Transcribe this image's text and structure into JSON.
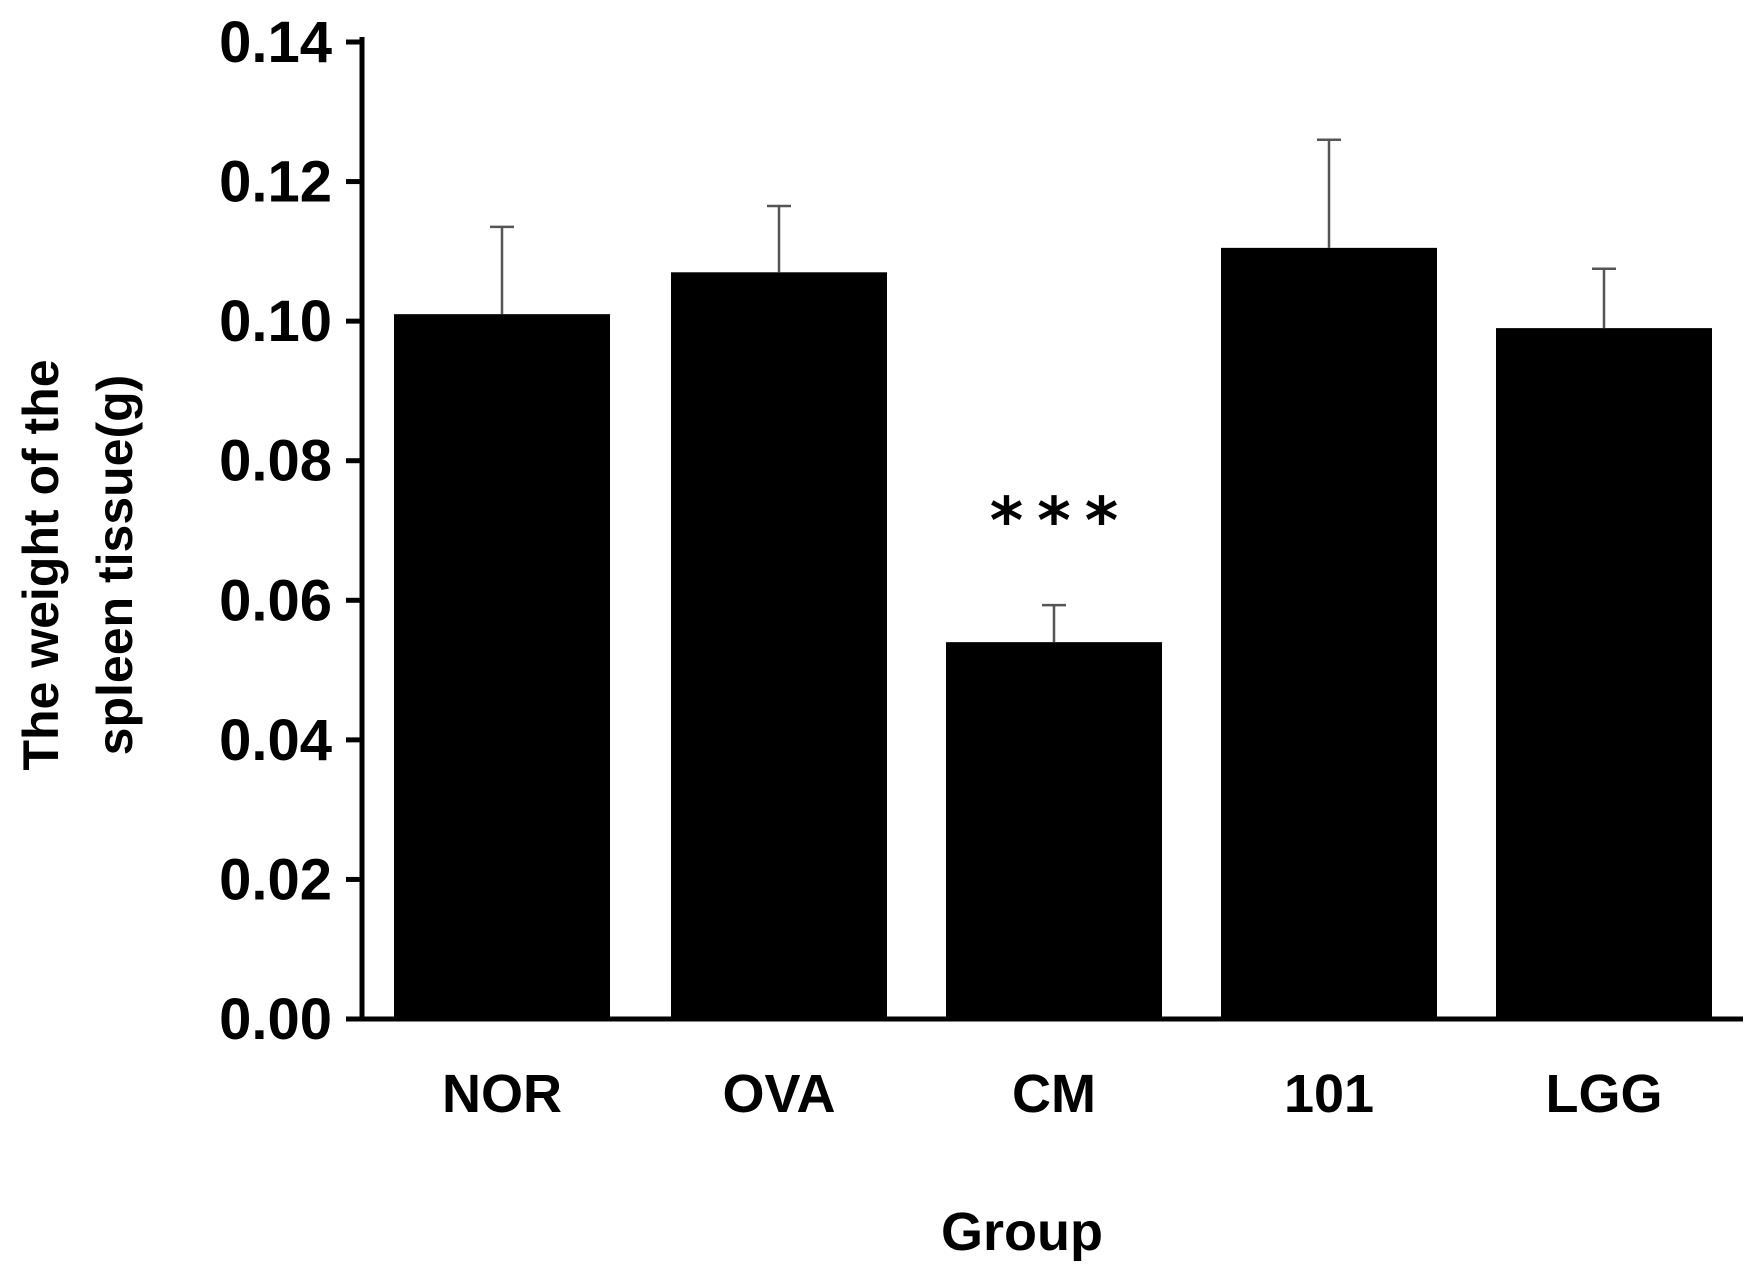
{
  "chart_data": {
    "type": "bar",
    "title": "",
    "xlabel": "Group",
    "ylabel_lines": [
      "The weight of the",
      "spleen tissue(g)"
    ],
    "categories": [
      "NOR",
      "OVA",
      "CM",
      "101",
      "LGG"
    ],
    "values": [
      0.101,
      0.107,
      0.054,
      0.1105,
      0.099
    ],
    "error": [
      0.0125,
      0.0095,
      0.0053,
      0.0155,
      0.0085
    ],
    "annotations": [
      {
        "category": "CM",
        "text": "***"
      }
    ],
    "ylim": [
      0,
      0.14
    ],
    "yticks": [
      "0.00",
      "0.02",
      "0.04",
      "0.06",
      "0.08",
      "0.10",
      "0.12",
      "0.14"
    ],
    "grid": false,
    "bar_color": "#000000",
    "error_bar_color": "#555555"
  }
}
